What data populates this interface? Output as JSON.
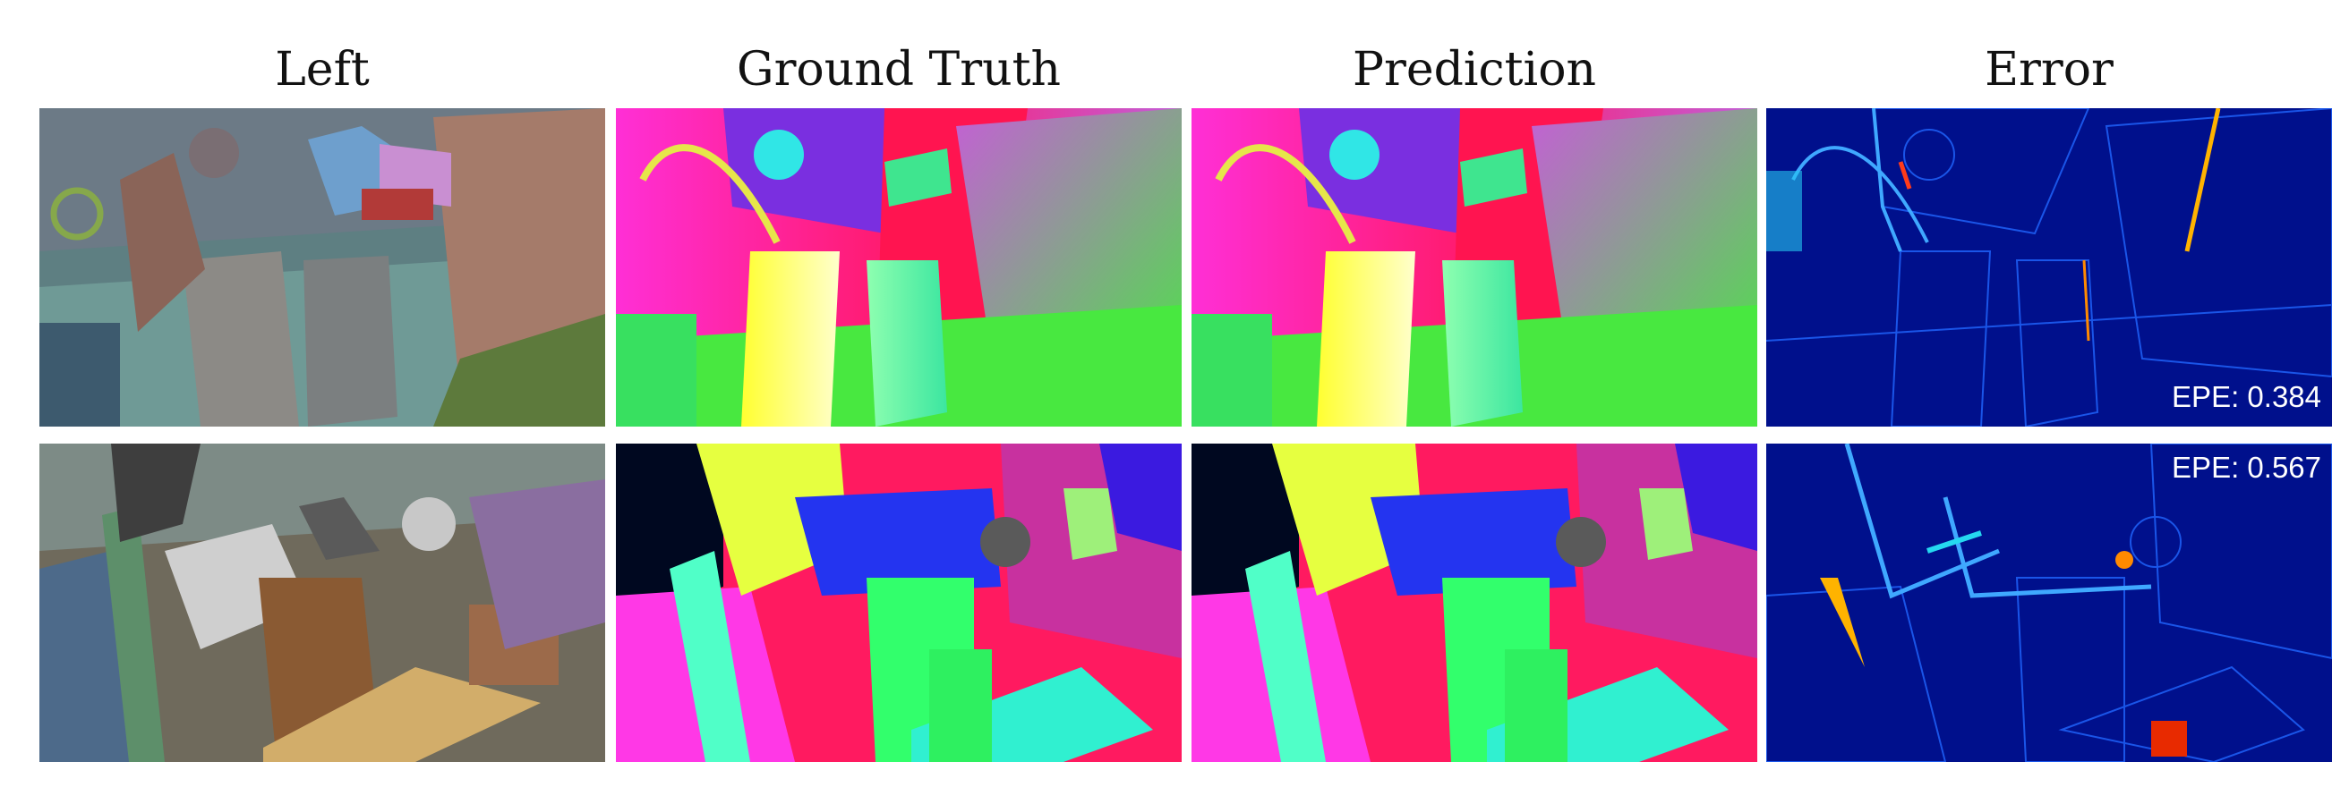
{
  "columns": [
    "Left",
    "Ground Truth",
    "Prediction",
    "Error"
  ],
  "rows": [
    {
      "epe_label": "EPE: 0.384"
    },
    {
      "epe_label": "EPE: 0.567"
    }
  ]
}
